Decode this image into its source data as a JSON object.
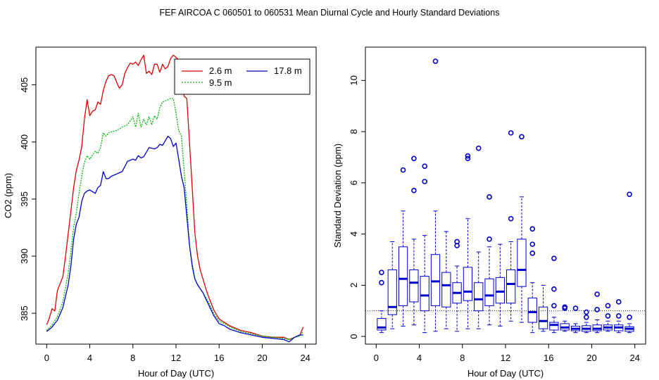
{
  "figure_title": "FEF   AIRCOA C   060501 to 060531   Mean Diurnal Cycle and Hourly Standard Deviations",
  "chart_data": [
    {
      "type": "line",
      "xlabel": "Hour of Day (UTC)",
      "ylabel": "CO2 (ppm)",
      "xlim": [
        -1,
        25
      ],
      "ylim": [
        382.3,
        408.3
      ],
      "xticks": [
        0,
        4,
        8,
        12,
        16,
        20,
        24
      ],
      "yticks": [
        385,
        390,
        395,
        400,
        405
      ],
      "legend_position": "top-right",
      "series": [
        {
          "name": "2.6 m",
          "color": "#dd0000",
          "dash": "solid",
          "x": [
            0,
            0.25,
            0.5,
            0.75,
            1,
            1.25,
            1.5,
            1.75,
            2,
            2.25,
            2.5,
            2.75,
            3,
            3.25,
            3.5,
            3.75,
            4,
            4.25,
            4.5,
            4.75,
            5,
            5.25,
            5.5,
            5.75,
            6,
            6.25,
            6.5,
            6.75,
            7,
            7.25,
            7.5,
            7.75,
            8,
            8.25,
            8.5,
            8.75,
            9,
            9.25,
            9.5,
            9.75,
            10,
            10.25,
            10.5,
            10.75,
            11,
            11.25,
            11.5,
            11.75,
            12,
            12.25,
            12.5,
            12.75,
            13,
            13.25,
            13.5,
            13.75,
            14,
            14.25,
            14.5,
            14.75,
            15,
            15.5,
            16,
            16.5,
            17,
            18,
            19,
            20,
            21,
            22,
            22.5,
            23,
            23.5,
            23.8
          ],
          "y": [
            384,
            384.6,
            385.4,
            385.2,
            387.0,
            387.6,
            388.2,
            390.0,
            392.0,
            394.0,
            396.0,
            397.5,
            398.4,
            399.6,
            402.0,
            403.7,
            402.3,
            402.7,
            402.8,
            403.5,
            403.3,
            404.5,
            405.3,
            405.8,
            405.9,
            405.8,
            405.2,
            404.7,
            405.0,
            406.0,
            406.5,
            406.9,
            406.8,
            407.0,
            406.7,
            407.2,
            407.6,
            406.0,
            406.2,
            405.9,
            406.8,
            406.8,
            406.1,
            406.8,
            406.4,
            406.6,
            407.3,
            407.6,
            407.4,
            407.2,
            406.0,
            404.0,
            403.8,
            400.0,
            396.0,
            392.0,
            390.0,
            388.8,
            388.0,
            387.2,
            386.5,
            385.3,
            384.5,
            384.2,
            383.9,
            383.5,
            383.3,
            383.0,
            382.9,
            382.9,
            382.7,
            382.9,
            383.1,
            383.8
          ]
        },
        {
          "name": "9.5 m",
          "color": "#00bb00",
          "dash": "dotted",
          "x": [
            0,
            0.5,
            1,
            1.5,
            2,
            2.25,
            2.5,
            2.75,
            3,
            3.25,
            3.5,
            3.75,
            4,
            4.5,
            4.75,
            5,
            5.25,
            5.5,
            5.75,
            6,
            6.5,
            7,
            7.5,
            8,
            8.25,
            8.5,
            8.75,
            9,
            9.25,
            9.5,
            9.75,
            10,
            10.25,
            10.5,
            10.75,
            11,
            11.5,
            11.75,
            12,
            12.25,
            12.5,
            12.75,
            13,
            13.25,
            13.5,
            13.75,
            14,
            14.5,
            15,
            15.5,
            16,
            16.5,
            17,
            18,
            19,
            20,
            21,
            22,
            22.5,
            23,
            23.5,
            23.8
          ],
          "y": [
            383.5,
            384.0,
            384.7,
            386.0,
            388.5,
            390.5,
            392.5,
            393.8,
            395.5,
            397.0,
            398.2,
            398.8,
            398.5,
            399.2,
            399.0,
            399.5,
            400.8,
            400.5,
            400.8,
            400.9,
            401.0,
            401.3,
            401.5,
            402.2,
            401.3,
            402.5,
            401.3,
            402.0,
            401.5,
            402.2,
            401.5,
            402.3,
            402.0,
            403.0,
            403.5,
            403.6,
            403.8,
            403.8,
            402.5,
            401.0,
            400.5,
            397.5,
            394.5,
            391.0,
            389.0,
            388.0,
            387.5,
            386.8,
            386.0,
            385.0,
            384.3,
            384.1,
            383.8,
            383.4,
            383.2,
            383.0,
            382.9,
            382.8,
            382.7,
            382.9,
            383.0,
            383.4
          ]
        },
        {
          "name": "17.8 m",
          "color": "#0000cc",
          "dash": "solid",
          "x": [
            0,
            0.5,
            1,
            1.5,
            2,
            2.25,
            2.5,
            2.75,
            3,
            3.25,
            3.5,
            3.75,
            4,
            4.5,
            4.75,
            5,
            5.25,
            5.5,
            5.75,
            6,
            6.5,
            7,
            7.5,
            8,
            8.25,
            8.5,
            8.75,
            9,
            9.5,
            10,
            10.25,
            10.5,
            10.75,
            11,
            11.25,
            11.5,
            11.75,
            12,
            12.25,
            12.5,
            12.75,
            13,
            13.25,
            13.5,
            13.75,
            14,
            14.5,
            15,
            15.5,
            16,
            16.5,
            17,
            18,
            19,
            20,
            21,
            22,
            22.5,
            23,
            23.5,
            23.8
          ],
          "y": [
            383.4,
            383.8,
            384.4,
            385.5,
            387.5,
            389.2,
            391.5,
            392.8,
            393.4,
            394.8,
            395.5,
            395.7,
            395.8,
            395.5,
            396.0,
            396.2,
            397.4,
            396.8,
            396.8,
            397.0,
            397.2,
            397.4,
            398.3,
            398.5,
            398.4,
            398.8,
            398.6,
            398.7,
            399.5,
            399.4,
            399.5,
            399.8,
            399.7,
            400.1,
            400.5,
            400.3,
            399.6,
            399.9,
            398.5,
            397.0,
            396.0,
            393.5,
            391.0,
            389.2,
            388.0,
            387.5,
            386.8,
            385.8,
            384.8,
            384.1,
            383.9,
            383.6,
            383.3,
            383.1,
            382.9,
            382.8,
            382.7,
            382.5,
            382.9,
            383.1,
            383.1
          ]
        }
      ]
    },
    {
      "type": "box",
      "xlabel": "Hour of Day (UTC)",
      "ylabel": "Standard Deviation (ppm)",
      "xlim": [
        -1,
        25
      ],
      "ylim": [
        -0.3,
        11.3
      ],
      "xticks": [
        0,
        4,
        8,
        12,
        16,
        20,
        24
      ],
      "yticks": [
        0,
        2,
        4,
        6,
        8,
        10
      ],
      "reference_line": 1.0,
      "color": "#0000cc",
      "boxes": [
        {
          "hour": 0.5,
          "low": 0.15,
          "q1": 0.25,
          "median": 0.35,
          "q3": 0.7,
          "high": 1.0,
          "outliers": [
            2.1,
            2.5
          ]
        },
        {
          "hour": 1.5,
          "low": 0.3,
          "q1": 0.85,
          "median": 1.15,
          "q3": 2.6,
          "high": 3.7,
          "outliers": []
        },
        {
          "hour": 2.5,
          "low": 0.4,
          "q1": 1.2,
          "median": 2.25,
          "q3": 3.5,
          "high": 4.9,
          "outliers": [
            6.5
          ]
        },
        {
          "hour": 3.5,
          "low": 0.45,
          "q1": 1.35,
          "median": 2.1,
          "q3": 2.6,
          "high": 3.8,
          "outliers": [
            5.7,
            6.95
          ]
        },
        {
          "hour": 4.5,
          "low": 0.15,
          "q1": 1.0,
          "median": 1.6,
          "q3": 2.35,
          "high": 3.95,
          "outliers": [
            6.05,
            6.65
          ]
        },
        {
          "hour": 5.5,
          "low": 0.2,
          "q1": 1.2,
          "median": 2.15,
          "q3": 3.2,
          "high": 4.9,
          "outliers": [
            10.75
          ]
        },
        {
          "hour": 6.5,
          "low": 0.3,
          "q1": 1.15,
          "median": 2.0,
          "q3": 2.5,
          "high": 4.1,
          "outliers": []
        },
        {
          "hour": 7.5,
          "low": 0.2,
          "q1": 1.3,
          "median": 1.7,
          "q3": 2.1,
          "high": 2.75,
          "outliers": [
            3.55,
            3.7
          ]
        },
        {
          "hour": 8.5,
          "low": 0.3,
          "q1": 1.4,
          "median": 1.75,
          "q3": 2.7,
          "high": 4.6,
          "outliers": [
            6.95,
            7.05
          ]
        },
        {
          "hour": 9.5,
          "low": 0.3,
          "q1": 1.0,
          "median": 1.45,
          "q3": 2.1,
          "high": 3.3,
          "outliers": [
            7.35
          ]
        },
        {
          "hour": 10.5,
          "low": 0.45,
          "q1": 1.2,
          "median": 1.6,
          "q3": 2.25,
          "high": 3.5,
          "outliers": [
            3.8,
            5.45
          ]
        },
        {
          "hour": 11.5,
          "low": 0.4,
          "q1": 1.3,
          "median": 1.75,
          "q3": 2.3,
          "high": 3.6,
          "outliers": []
        },
        {
          "hour": 12.5,
          "low": 0.6,
          "q1": 1.3,
          "median": 2.05,
          "q3": 2.6,
          "high": 3.7,
          "outliers": [
            4.6,
            7.95
          ]
        },
        {
          "hour": 13.5,
          "low": 0.55,
          "q1": 1.95,
          "median": 2.6,
          "q3": 3.8,
          "high": 5.45,
          "outliers": [
            7.8
          ]
        },
        {
          "hour": 14.5,
          "low": 0.15,
          "q1": 0.55,
          "median": 0.95,
          "q3": 1.5,
          "high": 2.1,
          "outliers": [
            3.25,
            3.6,
            4.2
          ]
        },
        {
          "hour": 15.5,
          "low": 0.2,
          "q1": 0.3,
          "median": 0.6,
          "q3": 1.15,
          "high": 2.0,
          "outliers": []
        },
        {
          "hour": 16.5,
          "low": 0.15,
          "q1": 0.25,
          "median": 0.45,
          "q3": 0.55,
          "high": 0.75,
          "outliers": [
            1.2,
            1.85,
            3.05
          ]
        },
        {
          "hour": 17.5,
          "low": 0.2,
          "q1": 0.25,
          "median": 0.35,
          "q3": 0.5,
          "high": 0.6,
          "outliers": [
            1.1,
            1.15
          ]
        },
        {
          "hour": 18.5,
          "low": 0.15,
          "q1": 0.22,
          "median": 0.3,
          "q3": 0.4,
          "high": 0.5,
          "outliers": [
            1.1
          ]
        },
        {
          "hour": 19.5,
          "low": 0.15,
          "q1": 0.2,
          "median": 0.3,
          "q3": 0.42,
          "high": 0.55,
          "outliers": [
            0.75,
            0.95
          ]
        },
        {
          "hour": 20.5,
          "low": 0.15,
          "q1": 0.22,
          "median": 0.3,
          "q3": 0.45,
          "high": 0.65,
          "outliers": [
            1.05,
            1.65
          ]
        },
        {
          "hour": 21.5,
          "low": 0.2,
          "q1": 0.25,
          "median": 0.35,
          "q3": 0.45,
          "high": 0.6,
          "outliers": [
            0.8,
            1.2
          ]
        },
        {
          "hour": 22.5,
          "low": 0.15,
          "q1": 0.22,
          "median": 0.35,
          "q3": 0.45,
          "high": 0.6,
          "outliers": [
            0.8,
            1.35
          ]
        },
        {
          "hour": 23.5,
          "low": 0.15,
          "q1": 0.2,
          "median": 0.3,
          "q3": 0.38,
          "high": 0.5,
          "outliers": [
            0.75,
            5.55
          ]
        }
      ]
    }
  ]
}
